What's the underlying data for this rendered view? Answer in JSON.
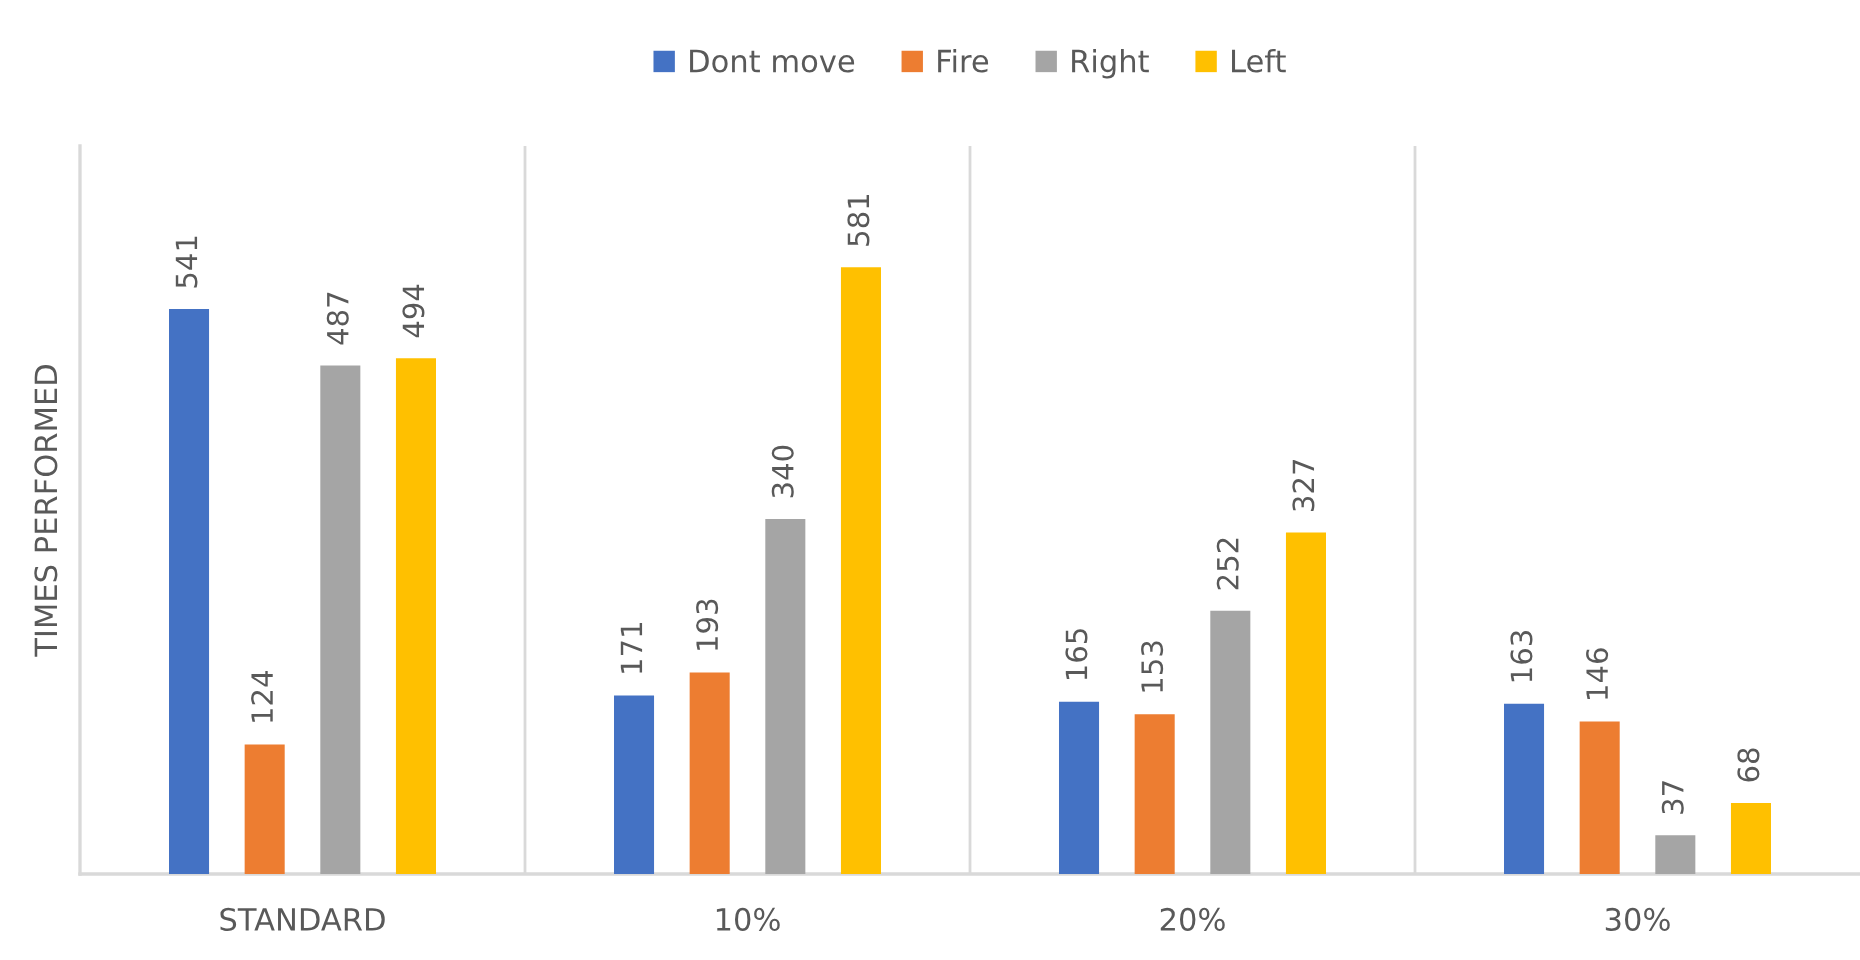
{
  "chart_data": {
    "type": "bar",
    "ylabel": "TIMES PERFORMED",
    "categories": [
      "STANDARD",
      "10%",
      "20%",
      "30%"
    ],
    "series": [
      {
        "name": "Dont move",
        "color": "#4472c4",
        "values": [
          541,
          171,
          165,
          163
        ]
      },
      {
        "name": "Fire",
        "color": "#ed7d31",
        "values": [
          124,
          193,
          153,
          146
        ]
      },
      {
        "name": "Right",
        "color": "#a5a5a5",
        "values": [
          487,
          340,
          252,
          37
        ]
      },
      {
        "name": "Left",
        "color": "#ffc000",
        "values": [
          494,
          581,
          327,
          68
        ]
      }
    ],
    "data_labels": true,
    "grid": "x",
    "legend": "top",
    "tick_labels": "x"
  }
}
